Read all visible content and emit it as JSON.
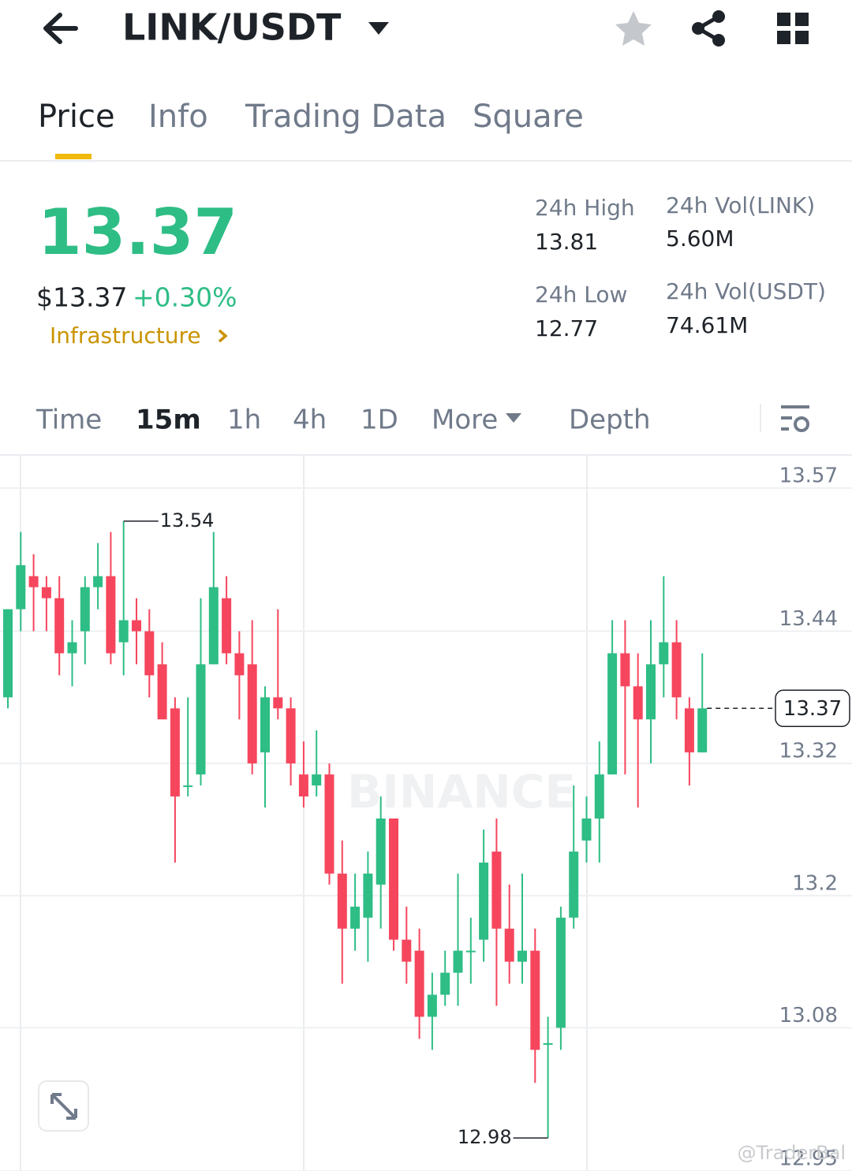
{
  "header": {
    "pair": "LINK/USDT"
  },
  "tabs": [
    "Price",
    "Info",
    "Trading Data",
    "Square"
  ],
  "ticker": {
    "price": "13.37",
    "fiat_price": "$13.37",
    "change": "+0.30%",
    "sector": "Infrastructure",
    "stats": [
      {
        "label": "24h High",
        "value": "13.81"
      },
      {
        "label": "24h Vol(LINK)",
        "value": "5.60M"
      },
      {
        "label": "24h Low",
        "value": "12.77"
      },
      {
        "label": "24h Vol(USDT)",
        "value": "74.61M"
      }
    ]
  },
  "intervals": [
    "Time",
    "15m",
    "1h",
    "4h",
    "1D",
    "More",
    "Depth"
  ],
  "chart_data": {
    "type": "candlestick",
    "watermark": "BINANCE",
    "up_color": "#2ebd85",
    "down_color": "#f6465d",
    "ylim": [
      12.95,
      13.6
    ],
    "yticks": [
      13.57,
      13.44,
      13.32,
      13.2,
      13.08,
      12.95
    ],
    "grid": true,
    "yticks_labels_note_free": null,
    "open": [
      13.38,
      13.46,
      13.49,
      13.48,
      13.47,
      13.42,
      13.44,
      13.48,
      13.49,
      13.43,
      13.45,
      13.44,
      13.41,
      13.37,
      13.3,
      13.31,
      13.41,
      13.47,
      13.42,
      13.41,
      13.33,
      13.38,
      13.37,
      13.31,
      13.3,
      13.31,
      13.22,
      13.17,
      13.18,
      13.21,
      13.27,
      13.16,
      13.15,
      13.09,
      13.11,
      13.13,
      13.15,
      13.16,
      13.24,
      13.17,
      13.14,
      13.15,
      13.066,
      13.08,
      13.18,
      13.25,
      13.27,
      13.31,
      13.42,
      13.39,
      13.36,
      13.41,
      13.43,
      13.37,
      13.33
    ],
    "high": [
      13.46,
      13.53,
      13.51,
      13.49,
      13.49,
      13.45,
      13.49,
      13.52,
      13.53,
      13.54,
      13.47,
      13.46,
      13.43,
      13.38,
      13.38,
      13.47,
      13.53,
      13.49,
      13.44,
      13.45,
      13.39,
      13.46,
      13.38,
      13.34,
      13.35,
      13.32,
      13.25,
      13.22,
      13.24,
      13.29,
      13.27,
      13.19,
      13.17,
      13.13,
      13.15,
      13.22,
      13.18,
      13.26,
      13.27,
      13.21,
      13.22,
      13.17,
      13.09,
      13.19,
      13.3,
      13.29,
      13.34,
      13.45,
      13.45,
      13.42,
      13.45,
      13.49,
      13.45,
      13.38,
      13.42
    ],
    "low": [
      13.37,
      13.44,
      13.44,
      13.44,
      13.4,
      13.39,
      13.41,
      13.46,
      13.41,
      13.4,
      13.41,
      13.38,
      13.36,
      13.23,
      13.29,
      13.3,
      13.41,
      13.41,
      13.36,
      13.31,
      13.28,
      13.36,
      13.3,
      13.28,
      13.29,
      13.21,
      13.12,
      13.15,
      13.14,
      13.17,
      13.15,
      13.12,
      13.07,
      13.06,
      13.1,
      13.1,
      13.12,
      13.14,
      13.1,
      13.12,
      13.12,
      13.03,
      12.98,
      13.06,
      13.17,
      13.23,
      13.23,
      13.31,
      13.31,
      13.28,
      13.32,
      13.38,
      13.36,
      13.3,
      13.33
    ],
    "close": [
      13.46,
      13.5,
      13.48,
      13.47,
      13.42,
      13.43,
      13.48,
      13.49,
      13.42,
      13.45,
      13.44,
      13.4,
      13.36,
      13.29,
      13.3,
      13.41,
      13.48,
      13.42,
      13.4,
      13.32,
      13.38,
      13.37,
      13.32,
      13.29,
      13.31,
      13.22,
      13.17,
      13.19,
      13.22,
      13.27,
      13.16,
      13.14,
      13.09,
      13.11,
      13.13,
      13.15,
      13.15,
      13.23,
      13.17,
      13.14,
      13.15,
      13.06,
      13.066,
      13.18,
      13.24,
      13.27,
      13.31,
      13.42,
      13.39,
      13.36,
      13.41,
      13.43,
      13.38,
      13.33,
      13.37
    ]
  },
  "watermark_user": "@TraderBal"
}
